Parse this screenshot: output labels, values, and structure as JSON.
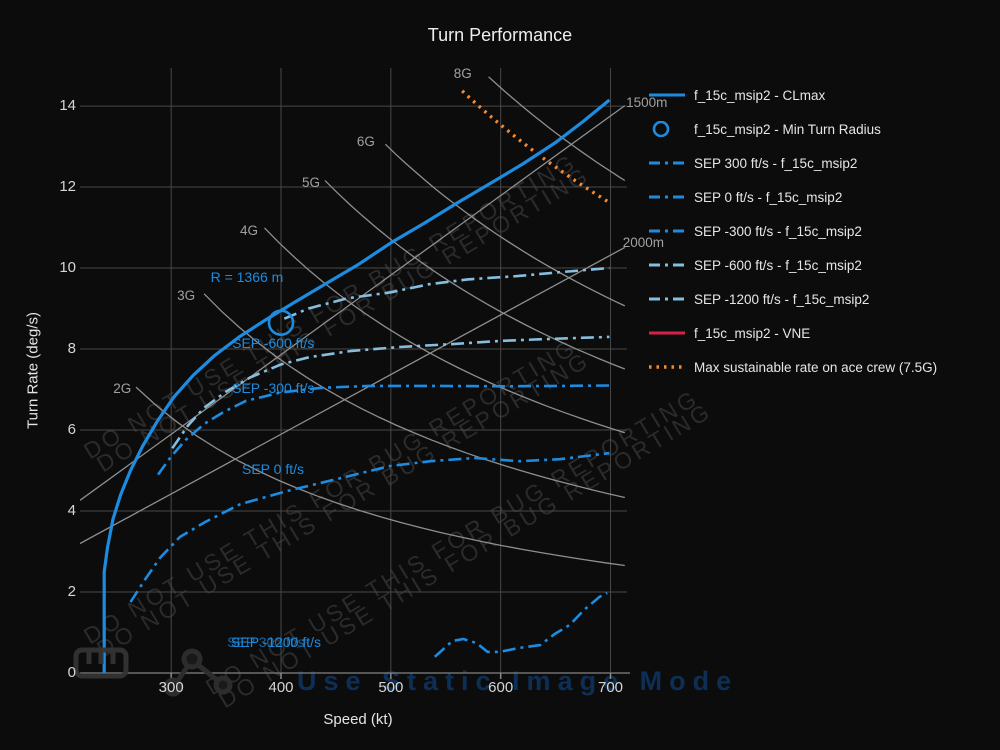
{
  "title": "Turn Performance",
  "axes": {
    "x": {
      "title": "Speed (kt)",
      "ticks": [
        300,
        400,
        500,
        600,
        700
      ],
      "range": [
        217,
        715
      ]
    },
    "y": {
      "title": "Turn Rate (deg/s)",
      "ticks": [
        0,
        2,
        4,
        6,
        8,
        10,
        12,
        14
      ],
      "range": [
        0,
        14.94
      ]
    }
  },
  "palette": {
    "blue": "#1d8ce0",
    "pale_blue": "#85bede",
    "red": "#d62246",
    "orange": "#f8892b",
    "grid": "#484848",
    "ref_line": "#8f8f8f",
    "ref_label": "#a0a0a0",
    "axis_line": "#6f6f6f",
    "dark_blue_label": "#1565a8"
  },
  "legend": {
    "items": [
      {
        "label": "f_15c_msip2 - CLmax",
        "marker": "line",
        "color": "blue"
      },
      {
        "label": "f_15c_msip2 - Min Turn Radius",
        "marker": "circle",
        "color": "blue"
      },
      {
        "label": "SEP 300 ft/s - f_15c_msip2",
        "marker": "dashdot",
        "color": "blue"
      },
      {
        "label": "SEP 0 ft/s - f_15c_msip2",
        "marker": "dashdot",
        "color": "blue"
      },
      {
        "label": "SEP -300 ft/s - f_15c_msip2",
        "marker": "dashdot",
        "color": "blue"
      },
      {
        "label": "SEP -600 ft/s - f_15c_msip2",
        "marker": "dashdot",
        "color": "pale_blue"
      },
      {
        "label": "SEP -1200 ft/s - f_15c_msip2",
        "marker": "dashdot",
        "color": "pale_blue"
      },
      {
        "label": "f_15c_msip2 - VNE",
        "marker": "line",
        "color": "red"
      },
      {
        "label": "Max sustainable rate on ace crew (7.5G)",
        "marker": "dots",
        "color": "orange"
      }
    ]
  },
  "watermarks": {
    "diagonal_text": "DO NOT USE THIS FOR BUG REPORTING",
    "static_mode": "Use Static Image Mode",
    "icons": [
      "ruler-icon",
      "share-icon"
    ]
  },
  "chart_data": {
    "type": "line",
    "xlabel": "Speed (kt)",
    "ylabel": "Turn Rate (deg/s)",
    "x_range": [
      217,
      715
    ],
    "y_range": [
      0,
      14.94
    ],
    "grid": true,
    "legend_position": "right",
    "series": [
      {
        "name": "f_15c_msip2 - CLmax",
        "style": "solid",
        "color": "blue",
        "width": 3.2,
        "points": [
          [
            239,
            0
          ],
          [
            239,
            2.5
          ],
          [
            242,
            3.1
          ],
          [
            247,
            3.8
          ],
          [
            254,
            4.4
          ],
          [
            263,
            5.0
          ],
          [
            274,
            5.6
          ],
          [
            287,
            6.2
          ],
          [
            302,
            6.8
          ],
          [
            320,
            7.35
          ],
          [
            340,
            7.85
          ],
          [
            362,
            8.3
          ],
          [
            386,
            8.72
          ],
          [
            412,
            9.15
          ],
          [
            440,
            9.6
          ],
          [
            470,
            10.08
          ],
          [
            500,
            10.62
          ],
          [
            530,
            11.1
          ],
          [
            560,
            11.6
          ],
          [
            590,
            12.08
          ],
          [
            620,
            12.57
          ],
          [
            650,
            13.1
          ],
          [
            675,
            13.62
          ],
          [
            699,
            14.15
          ]
        ]
      },
      {
        "name": "SEP -1200 ft/s - f_15c_msip2",
        "style": "dashdot",
        "color": "pale_blue",
        "width": 2.6,
        "points": [
          [
            403,
            8.75
          ],
          [
            425,
            9.0
          ],
          [
            460,
            9.25
          ],
          [
            500,
            9.4
          ],
          [
            535,
            9.6
          ],
          [
            570,
            9.72
          ],
          [
            615,
            9.8
          ],
          [
            655,
            9.9
          ],
          [
            699,
            10.0
          ]
        ]
      },
      {
        "name": "SEP -600 ft/s - f_15c_msip2",
        "style": "dashdot",
        "color": "pale_blue",
        "width": 2.6,
        "points": [
          [
            301,
            5.55
          ],
          [
            315,
            6.1
          ],
          [
            330,
            6.55
          ],
          [
            350,
            6.95
          ],
          [
            372,
            7.3
          ],
          [
            400,
            7.62
          ],
          [
            426,
            7.8
          ],
          [
            463,
            7.95
          ],
          [
            508,
            8.05
          ],
          [
            554,
            8.12
          ],
          [
            600,
            8.2
          ],
          [
            645,
            8.25
          ],
          [
            699,
            8.3
          ]
        ]
      },
      {
        "name": "SEP -300 ft/s - f_15c_msip2",
        "style": "dashdot",
        "color": "blue",
        "width": 2.6,
        "points": [
          [
            288,
            4.9
          ],
          [
            300,
            5.35
          ],
          [
            313,
            5.75
          ],
          [
            330,
            6.15
          ],
          [
            348,
            6.45
          ],
          [
            368,
            6.72
          ],
          [
            400,
            6.93
          ],
          [
            436,
            7.04
          ],
          [
            480,
            7.09
          ],
          [
            536,
            7.09
          ],
          [
            600,
            7.08
          ],
          [
            655,
            7.09
          ],
          [
            700,
            7.1
          ]
        ]
      },
      {
        "name": "SEP 0 ft/s - f_15c_msip2",
        "style": "dashdot",
        "color": "blue",
        "width": 2.6,
        "points": [
          [
            263,
            1.75
          ],
          [
            276,
            2.3
          ],
          [
            290,
            2.85
          ],
          [
            308,
            3.36
          ],
          [
            331,
            3.73
          ],
          [
            363,
            4.17
          ],
          [
            405,
            4.49
          ],
          [
            454,
            4.81
          ],
          [
            499,
            5.11
          ],
          [
            536,
            5.23
          ],
          [
            576,
            5.31
          ],
          [
            617,
            5.23
          ],
          [
            654,
            5.28
          ],
          [
            699,
            5.43
          ]
        ]
      },
      {
        "name": "SEP 300 ft/s - f_15c_msip2",
        "style": "dashdot",
        "color": "blue",
        "width": 2.6,
        "points": [
          [
            540,
            0.4
          ],
          [
            556,
            0.79
          ],
          [
            566,
            0.84
          ],
          [
            578,
            0.74
          ],
          [
            588,
            0.52
          ],
          [
            599,
            0.52
          ],
          [
            617,
            0.62
          ],
          [
            636,
            0.69
          ],
          [
            649,
            0.96
          ],
          [
            663,
            1.19
          ],
          [
            676,
            1.56
          ],
          [
            690,
            1.88
          ],
          [
            697,
            1.98
          ]
        ]
      }
    ],
    "min_turn_radius_marker": {
      "speed_kt": 400,
      "turn_rate": 8.65,
      "radius_m": 1366
    },
    "ace_crew_line": {
      "name": "Max sustainable rate on ace crew (7.5G)",
      "hyperbola_k": 8121,
      "v_start": 565,
      "v_end": 698,
      "style": "dots",
      "color": "orange",
      "width": 3.4
    },
    "g_lines": [
      {
        "label": "2G",
        "k": 1892.3,
        "v_start": 268,
        "v_end": 713,
        "label_at": [
          255.5,
          6.99
        ]
      },
      {
        "label": "3G",
        "k": 3090.4,
        "v_start": 330,
        "v_end": 713,
        "label_at": [
          313.6,
          9.28
        ]
      },
      {
        "label": "4G",
        "k": 4231.5,
        "v_start": 385,
        "v_end": 713,
        "label_at": [
          370.9,
          10.89
        ]
      },
      {
        "label": "5G",
        "k": 5352.6,
        "v_start": 440,
        "v_end": 713,
        "label_at": [
          427.3,
          12.07
        ]
      },
      {
        "label": "6G",
        "k": 6463.3,
        "v_start": 495,
        "v_end": 713,
        "label_at": [
          477.3,
          13.09
        ]
      },
      {
        "label": "8G",
        "k": 8671.7,
        "v_start": 589,
        "v_end": 713,
        "label_at": [
          565.5,
          14.77
        ]
      }
    ],
    "radius_lines": [
      {
        "label": "1500m",
        "deg_per_kt": 0.019653,
        "v_start": 217,
        "v_end": 713,
        "label_at": [
          736,
          14.05
        ]
      },
      {
        "label": "2000m",
        "deg_per_kt": 0.01474,
        "v_start": 217,
        "v_end": 713,
        "label_at": [
          733,
          10.59
        ]
      }
    ],
    "annotations": [
      {
        "id": "r-min-label",
        "text": "R = 1366 m",
        "at": [
          369,
          9.75
        ],
        "anchor": "middle",
        "color": "blue"
      },
      {
        "id": "sep-m600-label",
        "text": "SEP -600 ft/s",
        "at": [
          355.5,
          8.12
        ],
        "anchor": "start",
        "color": "blue"
      },
      {
        "id": "sep-m300-label",
        "text": "SEP -300 ft/s",
        "at": [
          355.5,
          7.01
        ],
        "anchor": "start",
        "color": "blue"
      },
      {
        "id": "sep-0-label",
        "text": "SEP 0 ft/s",
        "at": [
          364.5,
          5.01
        ],
        "anchor": "start",
        "color": "blue"
      },
      {
        "id": "sep-300-label",
        "text": "SEP 300 ft/s",
        "at": [
          350.9,
          0.74
        ],
        "anchor": "start",
        "color": "dark_blue_label"
      },
      {
        "id": "sep-m1200-label",
        "text": "SEP -1200 ft/s",
        "at": [
          354.5,
          0.74
        ],
        "anchor": "start",
        "color": "blue"
      }
    ]
  }
}
